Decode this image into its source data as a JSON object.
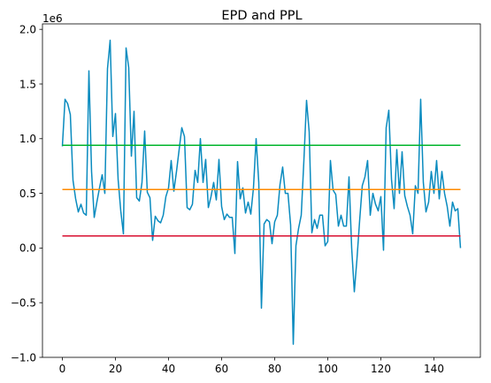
{
  "chart_data": {
    "type": "line",
    "title": "EPD and PPL",
    "xlabel": "",
    "ylabel": "",
    "y_offset_label": "1e6",
    "xlim": [
      -7.5,
      157.5
    ],
    "ylim": [
      -1.0,
      2.05
    ],
    "x_ticks": [
      0,
      20,
      40,
      60,
      80,
      100,
      120,
      140
    ],
    "x_tick_labels": [
      "0",
      "20",
      "40",
      "60",
      "80",
      "100",
      "120",
      "140"
    ],
    "y_ticks": [
      -1.0,
      -0.5,
      0.0,
      0.5,
      1.0,
      1.5,
      2.0
    ],
    "y_tick_labels": [
      "−1.0",
      "−0.5",
      "0.0",
      "0.5",
      "1.0",
      "1.5",
      "2.0"
    ],
    "grid": false,
    "legend": "none",
    "series": [
      {
        "color": "#0a8bbf",
        "y": [
          0.93,
          1.36,
          1.32,
          1.22,
          0.62,
          0.45,
          0.33,
          0.4,
          0.32,
          0.3,
          1.62,
          0.7,
          0.28,
          0.42,
          0.55,
          0.67,
          0.5,
          1.64,
          1.9,
          1.02,
          1.23,
          0.63,
          0.34,
          0.13,
          1.83,
          1.65,
          0.84,
          1.25,
          0.46,
          0.43,
          0.6,
          1.07,
          0.51,
          0.46,
          0.07,
          0.29,
          0.25,
          0.23,
          0.3,
          0.47,
          0.55,
          0.8,
          0.52,
          0.7,
          0.9,
          1.1,
          1.02,
          0.37,
          0.35,
          0.4,
          0.71,
          0.6,
          1.0,
          0.6,
          0.81,
          0.37,
          0.47,
          0.6,
          0.44,
          0.81,
          0.38,
          0.26,
          0.31,
          0.28,
          0.28,
          -0.05,
          0.79,
          0.45,
          0.55,
          0.32,
          0.42,
          0.31,
          0.55,
          1.0,
          0.6,
          -0.55,
          0.22,
          0.26,
          0.24,
          0.04,
          0.24,
          0.3,
          0.58,
          0.74,
          0.5,
          0.5,
          0.21,
          -0.88,
          0.02,
          0.18,
          0.3,
          0.8,
          1.35,
          1.06,
          0.14,
          0.26,
          0.18,
          0.3,
          0.3,
          0.02,
          0.06,
          0.8,
          0.53,
          0.49,
          0.2,
          0.3,
          0.2,
          0.2,
          0.65,
          0.0,
          -0.4,
          -0.1,
          0.25,
          0.57,
          0.65,
          0.8,
          0.3,
          0.5,
          0.4,
          0.34,
          0.47,
          -0.02,
          1.1,
          1.26,
          0.63,
          0.36,
          0.9,
          0.5,
          0.88,
          0.48,
          0.38,
          0.3,
          0.13,
          0.57,
          0.5,
          1.36,
          0.6,
          0.33,
          0.42,
          0.7,
          0.5,
          0.8,
          0.45,
          0.7,
          0.5,
          0.38,
          0.2,
          0.42,
          0.34,
          0.36,
          0.0
        ]
      },
      {
        "color": "#00b52c",
        "x": [
          0,
          150
        ],
        "y": [
          0.94,
          0.94
        ]
      },
      {
        "color": "#ff8a00",
        "x": [
          0,
          150
        ],
        "y": [
          0.535,
          0.535
        ]
      },
      {
        "color": "#d80f30",
        "x": [
          0,
          150
        ],
        "y": [
          0.11,
          0.11
        ]
      }
    ]
  }
}
